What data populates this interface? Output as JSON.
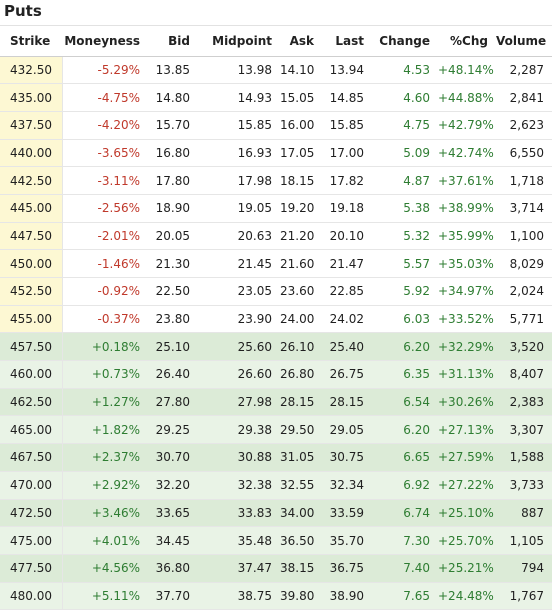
{
  "title": "Puts",
  "columns": [
    "Strike",
    "Moneyness",
    "Bid",
    "Midpoint",
    "Ask",
    "Last",
    "Change",
    "%Chg",
    "Volume"
  ],
  "rows": [
    {
      "strike": "432.50",
      "moneyness": "-5.29%",
      "bid": "13.85",
      "midpoint": "13.98",
      "ask": "14.10",
      "last": "13.94",
      "change": "4.53",
      "pctchg": "+48.14%",
      "volume": "2,287",
      "itm": false
    },
    {
      "strike": "435.00",
      "moneyness": "-4.75%",
      "bid": "14.80",
      "midpoint": "14.93",
      "ask": "15.05",
      "last": "14.85",
      "change": "4.60",
      "pctchg": "+44.88%",
      "volume": "2,841",
      "itm": false
    },
    {
      "strike": "437.50",
      "moneyness": "-4.20%",
      "bid": "15.70",
      "midpoint": "15.85",
      "ask": "16.00",
      "last": "15.85",
      "change": "4.75",
      "pctchg": "+42.79%",
      "volume": "2,623",
      "itm": false
    },
    {
      "strike": "440.00",
      "moneyness": "-3.65%",
      "bid": "16.80",
      "midpoint": "16.93",
      "ask": "17.05",
      "last": "17.00",
      "change": "5.09",
      "pctchg": "+42.74%",
      "volume": "6,550",
      "itm": false
    },
    {
      "strike": "442.50",
      "moneyness": "-3.11%",
      "bid": "17.80",
      "midpoint": "17.98",
      "ask": "18.15",
      "last": "17.82",
      "change": "4.87",
      "pctchg": "+37.61%",
      "volume": "1,718",
      "itm": false
    },
    {
      "strike": "445.00",
      "moneyness": "-2.56%",
      "bid": "18.90",
      "midpoint": "19.05",
      "ask": "19.20",
      "last": "19.18",
      "change": "5.38",
      "pctchg": "+38.99%",
      "volume": "3,714",
      "itm": false
    },
    {
      "strike": "447.50",
      "moneyness": "-2.01%",
      "bid": "20.05",
      "midpoint": "20.63",
      "ask": "21.20",
      "last": "20.10",
      "change": "5.32",
      "pctchg": "+35.99%",
      "volume": "1,100",
      "itm": false
    },
    {
      "strike": "450.00",
      "moneyness": "-1.46%",
      "bid": "21.30",
      "midpoint": "21.45",
      "ask": "21.60",
      "last": "21.47",
      "change": "5.57",
      "pctchg": "+35.03%",
      "volume": "8,029",
      "itm": false
    },
    {
      "strike": "452.50",
      "moneyness": "-0.92%",
      "bid": "22.50",
      "midpoint": "23.05",
      "ask": "23.60",
      "last": "22.85",
      "change": "5.92",
      "pctchg": "+34.97%",
      "volume": "2,024",
      "itm": false
    },
    {
      "strike": "455.00",
      "moneyness": "-0.37%",
      "bid": "23.80",
      "midpoint": "23.90",
      "ask": "24.00",
      "last": "24.02",
      "change": "6.03",
      "pctchg": "+33.52%",
      "volume": "5,771",
      "itm": false
    },
    {
      "strike": "457.50",
      "moneyness": "+0.18%",
      "bid": "25.10",
      "midpoint": "25.60",
      "ask": "26.10",
      "last": "25.40",
      "change": "6.20",
      "pctchg": "+32.29%",
      "volume": "3,520",
      "itm": true
    },
    {
      "strike": "460.00",
      "moneyness": "+0.73%",
      "bid": "26.40",
      "midpoint": "26.60",
      "ask": "26.80",
      "last": "26.75",
      "change": "6.35",
      "pctchg": "+31.13%",
      "volume": "8,407",
      "itm": true
    },
    {
      "strike": "462.50",
      "moneyness": "+1.27%",
      "bid": "27.80",
      "midpoint": "27.98",
      "ask": "28.15",
      "last": "28.15",
      "change": "6.54",
      "pctchg": "+30.26%",
      "volume": "2,383",
      "itm": true
    },
    {
      "strike": "465.00",
      "moneyness": "+1.82%",
      "bid": "29.25",
      "midpoint": "29.38",
      "ask": "29.50",
      "last": "29.05",
      "change": "6.20",
      "pctchg": "+27.13%",
      "volume": "3,307",
      "itm": true
    },
    {
      "strike": "467.50",
      "moneyness": "+2.37%",
      "bid": "30.70",
      "midpoint": "30.88",
      "ask": "31.05",
      "last": "30.75",
      "change": "6.65",
      "pctchg": "+27.59%",
      "volume": "1,588",
      "itm": true
    },
    {
      "strike": "470.00",
      "moneyness": "+2.92%",
      "bid": "32.20",
      "midpoint": "32.38",
      "ask": "32.55",
      "last": "32.34",
      "change": "6.92",
      "pctchg": "+27.22%",
      "volume": "3,733",
      "itm": true
    },
    {
      "strike": "472.50",
      "moneyness": "+3.46%",
      "bid": "33.65",
      "midpoint": "33.83",
      "ask": "34.00",
      "last": "33.59",
      "change": "6.74",
      "pctchg": "+25.10%",
      "volume": "887",
      "itm": true
    },
    {
      "strike": "475.00",
      "moneyness": "+4.01%",
      "bid": "34.45",
      "midpoint": "35.48",
      "ask": "36.50",
      "last": "35.70",
      "change": "7.30",
      "pctchg": "+25.70%",
      "volume": "1,105",
      "itm": true
    },
    {
      "strike": "477.50",
      "moneyness": "+4.56%",
      "bid": "36.80",
      "midpoint": "37.47",
      "ask": "38.15",
      "last": "36.75",
      "change": "7.40",
      "pctchg": "+25.21%",
      "volume": "794",
      "itm": true
    },
    {
      "strike": "480.00",
      "moneyness": "+5.11%",
      "bid": "37.70",
      "midpoint": "38.75",
      "ask": "39.80",
      "last": "38.90",
      "change": "7.65",
      "pctchg": "+24.48%",
      "volume": "1,767",
      "itm": true
    }
  ],
  "colors": {
    "negative": "#c0392b",
    "positive": "#2e7d32",
    "otm_strike_bg": "#fdf8d3",
    "itm_bg": "#e9f3e6",
    "itm_bg_alt": "#dcebd7"
  }
}
